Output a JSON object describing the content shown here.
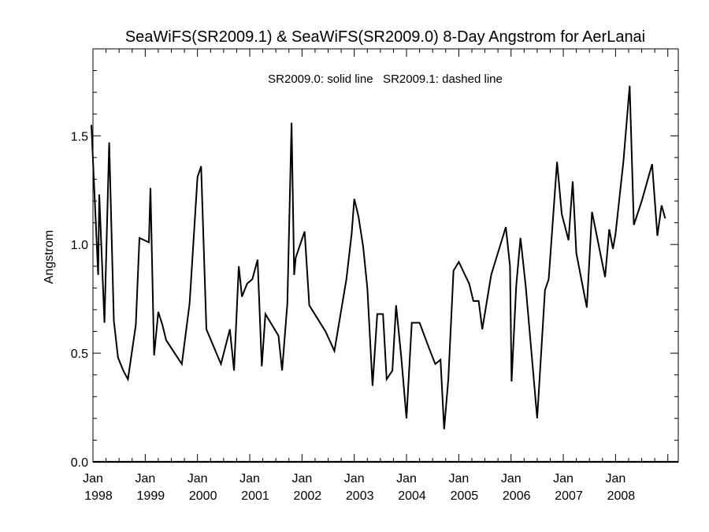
{
  "chart_data": {
    "type": "line",
    "title": "SeaWiFS(SR2009.1) & SeaWiFS(SR2009.0) 8-Day Angstrom for AerLanai",
    "annotation": "SR2009.0: solid line   SR2009.1: dashed line",
    "ylabel": "Angstrom",
    "xlabel": "",
    "ylim": [
      0.0,
      1.9
    ],
    "xlim": [
      1998.0,
      2009.2
    ],
    "yticks": [
      0.0,
      0.5,
      1.0,
      1.5
    ],
    "ytick_labels": [
      "0.0",
      "0.5",
      "1.0",
      "1.5"
    ],
    "xticks": [
      {
        "value": 1998,
        "month": "Jan",
        "year": "1998"
      },
      {
        "value": 1999,
        "month": "Jan",
        "year": "1999"
      },
      {
        "value": 2000,
        "month": "Jan",
        "year": "2000"
      },
      {
        "value": 2001,
        "month": "Jan",
        "year": "2001"
      },
      {
        "value": 2002,
        "month": "Jan",
        "year": "2002"
      },
      {
        "value": 2003,
        "month": "Jan",
        "year": "2003"
      },
      {
        "value": 2004,
        "month": "Jan",
        "year": "2004"
      },
      {
        "value": 2005,
        "month": "Jan",
        "year": "2005"
      },
      {
        "value": 2006,
        "month": "Jan",
        "year": "2006"
      },
      {
        "value": 2007,
        "month": "Jan",
        "year": "2007"
      },
      {
        "value": 2008,
        "month": "Jan",
        "year": "2008"
      }
    ],
    "grid": false,
    "series": [
      {
        "name": "SR2009.0",
        "style": "solid",
        "color": "#000000",
        "points": [
          [
            1997.97,
            1.55
          ],
          [
            1998.1,
            0.86
          ],
          [
            1998.12,
            1.23
          ],
          [
            1998.22,
            0.64
          ],
          [
            1998.31,
            1.47
          ],
          [
            1998.4,
            0.65
          ],
          [
            1998.48,
            0.48
          ],
          [
            1998.58,
            0.42
          ],
          [
            1998.67,
            0.38
          ],
          [
            1998.82,
            0.63
          ],
          [
            1998.89,
            1.03
          ],
          [
            1999.07,
            1.01
          ],
          [
            1999.1,
            1.26
          ],
          [
            1999.17,
            0.49
          ],
          [
            1999.25,
            0.69
          ],
          [
            1999.33,
            0.63
          ],
          [
            1999.4,
            0.56
          ],
          [
            1999.7,
            0.45
          ],
          [
            1999.85,
            0.73
          ],
          [
            2000.0,
            1.31
          ],
          [
            2000.07,
            1.36
          ],
          [
            2000.17,
            0.61
          ],
          [
            2000.45,
            0.45
          ],
          [
            2000.62,
            0.61
          ],
          [
            2000.7,
            0.42
          ],
          [
            2000.79,
            0.9
          ],
          [
            2000.85,
            0.76
          ],
          [
            2000.95,
            0.82
          ],
          [
            2001.05,
            0.84
          ],
          [
            2001.15,
            0.93
          ],
          [
            2001.23,
            0.44
          ],
          [
            2001.3,
            0.68
          ],
          [
            2001.45,
            0.62
          ],
          [
            2001.55,
            0.58
          ],
          [
            2001.62,
            0.42
          ],
          [
            2001.72,
            0.73
          ],
          [
            2001.8,
            1.56
          ],
          [
            2001.85,
            0.86
          ],
          [
            2001.88,
            0.94
          ],
          [
            2002.05,
            1.06
          ],
          [
            2002.14,
            0.72
          ],
          [
            2002.45,
            0.6
          ],
          [
            2002.62,
            0.51
          ],
          [
            2002.85,
            0.84
          ],
          [
            2002.95,
            1.05
          ],
          [
            2003.0,
            1.21
          ],
          [
            2003.08,
            1.13
          ],
          [
            2003.17,
            0.99
          ],
          [
            2003.25,
            0.8
          ],
          [
            2003.35,
            0.35
          ],
          [
            2003.44,
            0.68
          ],
          [
            2003.55,
            0.68
          ],
          [
            2003.62,
            0.38
          ],
          [
            2003.73,
            0.42
          ],
          [
            2003.8,
            0.72
          ],
          [
            2003.9,
            0.48
          ],
          [
            2004.0,
            0.2
          ],
          [
            2004.1,
            0.64
          ],
          [
            2004.25,
            0.64
          ],
          [
            2004.42,
            0.53
          ],
          [
            2004.55,
            0.45
          ],
          [
            2004.65,
            0.47
          ],
          [
            2004.72,
            0.15
          ],
          [
            2004.8,
            0.38
          ],
          [
            2004.9,
            0.88
          ],
          [
            2005.0,
            0.92
          ],
          [
            2005.2,
            0.82
          ],
          [
            2005.28,
            0.74
          ],
          [
            2005.38,
            0.74
          ],
          [
            2005.45,
            0.61
          ],
          [
            2005.62,
            0.86
          ],
          [
            2005.9,
            1.08
          ],
          [
            2005.98,
            0.9
          ],
          [
            2006.01,
            0.37
          ],
          [
            2006.1,
            0.81
          ],
          [
            2006.18,
            1.03
          ],
          [
            2006.28,
            0.81
          ],
          [
            2006.5,
            0.2
          ],
          [
            2006.65,
            0.79
          ],
          [
            2006.72,
            0.84
          ],
          [
            2006.88,
            1.38
          ],
          [
            2006.97,
            1.14
          ],
          [
            2007.1,
            1.02
          ],
          [
            2007.18,
            1.29
          ],
          [
            2007.25,
            0.96
          ],
          [
            2007.45,
            0.71
          ],
          [
            2007.55,
            1.15
          ],
          [
            2007.8,
            0.85
          ],
          [
            2007.88,
            1.07
          ],
          [
            2007.95,
            0.98
          ],
          [
            2008.0,
            1.05
          ],
          [
            2008.15,
            1.38
          ],
          [
            2008.27,
            1.73
          ],
          [
            2008.35,
            1.09
          ],
          [
            2008.5,
            1.2
          ],
          [
            2008.7,
            1.37
          ],
          [
            2008.8,
            1.04
          ],
          [
            2008.88,
            1.18
          ],
          [
            2008.95,
            1.12
          ]
        ]
      }
    ]
  }
}
